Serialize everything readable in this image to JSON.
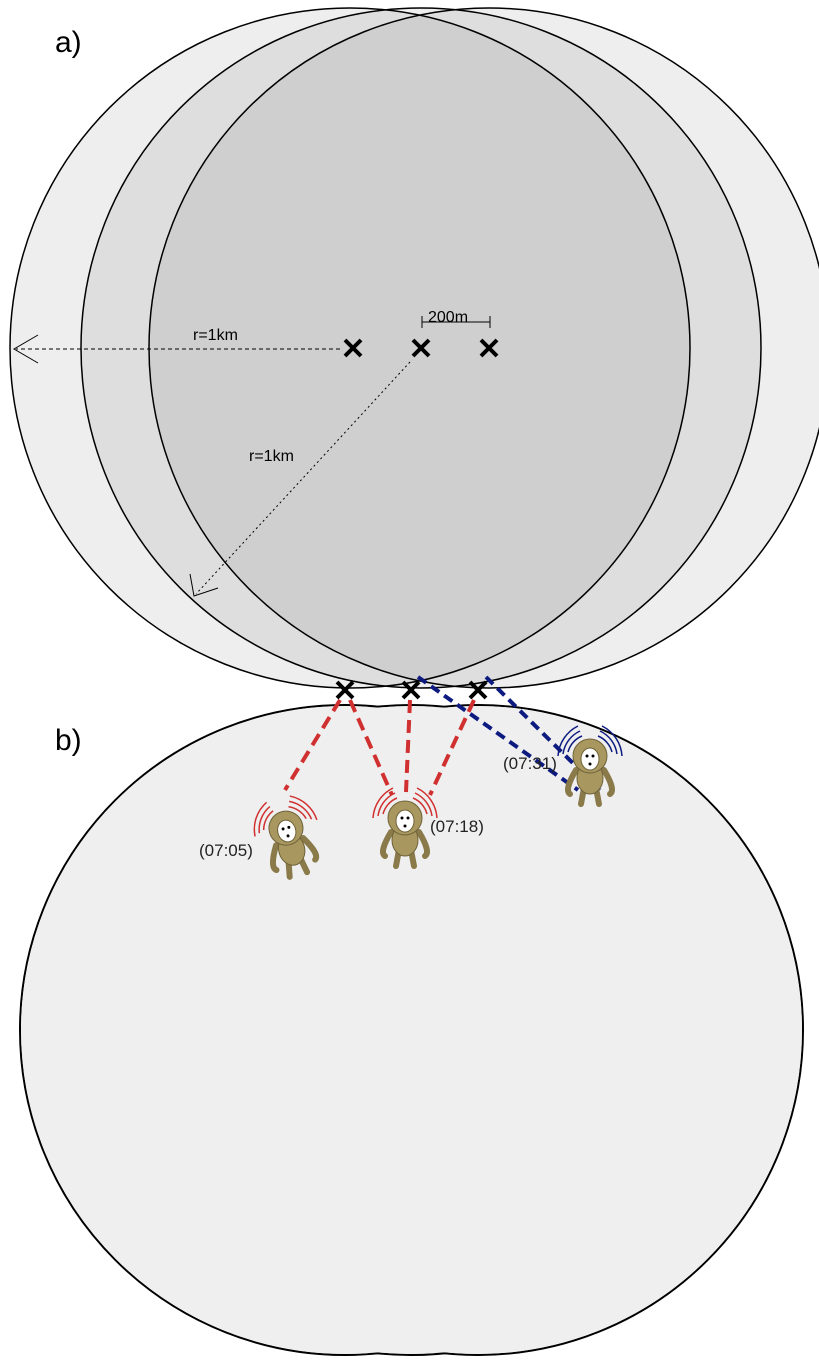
{
  "panel_a": {
    "label": "a)",
    "radius_label_horizontal": "r=1km",
    "radius_label_diagonal": "r=1km",
    "spacing_label": "200m"
  },
  "panel_b": {
    "label": "b)",
    "times": [
      "(07:31)",
      "(07:18)",
      "(07:05)"
    ]
  }
}
